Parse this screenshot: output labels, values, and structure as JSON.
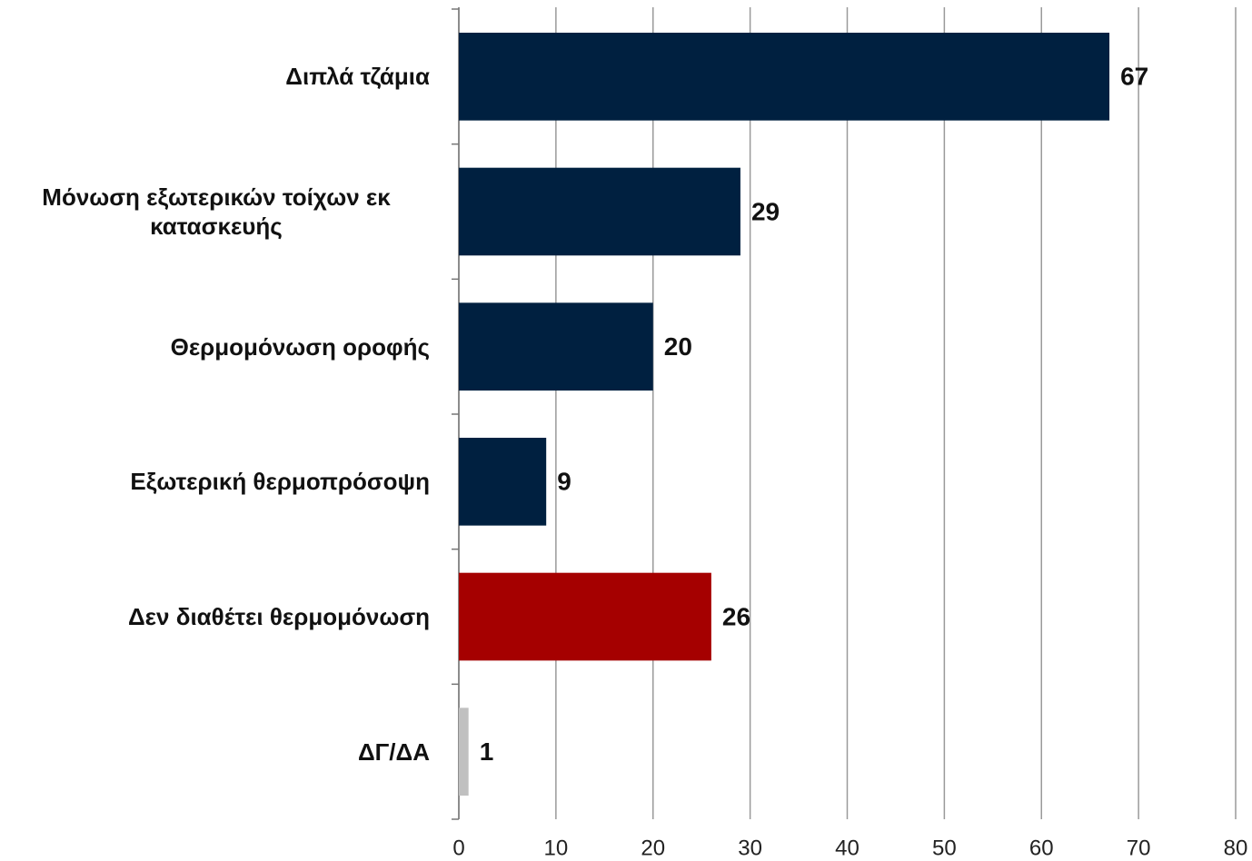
{
  "chart_data": {
    "type": "bar",
    "orientation": "horizontal",
    "categories": [
      "Διπλά τζάμια",
      "Μόνωση εξωτερικών τοίχων εκ κατασκευής",
      "Θερμομόνωση οροφής",
      "Εξωτερική θερμοπρόσοψη",
      "Δεν διαθέτει θερμομόνωση",
      "ΔΓ/ΔΑ"
    ],
    "values": [
      67,
      29,
      20,
      9,
      26,
      1
    ],
    "colors": [
      "#002040",
      "#002040",
      "#002040",
      "#002040",
      "#a50000",
      "#c0c0c0"
    ],
    "xlim": [
      0,
      80
    ],
    "xticks": [
      0,
      10,
      20,
      30,
      40,
      50,
      60,
      70,
      80
    ],
    "grid": true
  }
}
